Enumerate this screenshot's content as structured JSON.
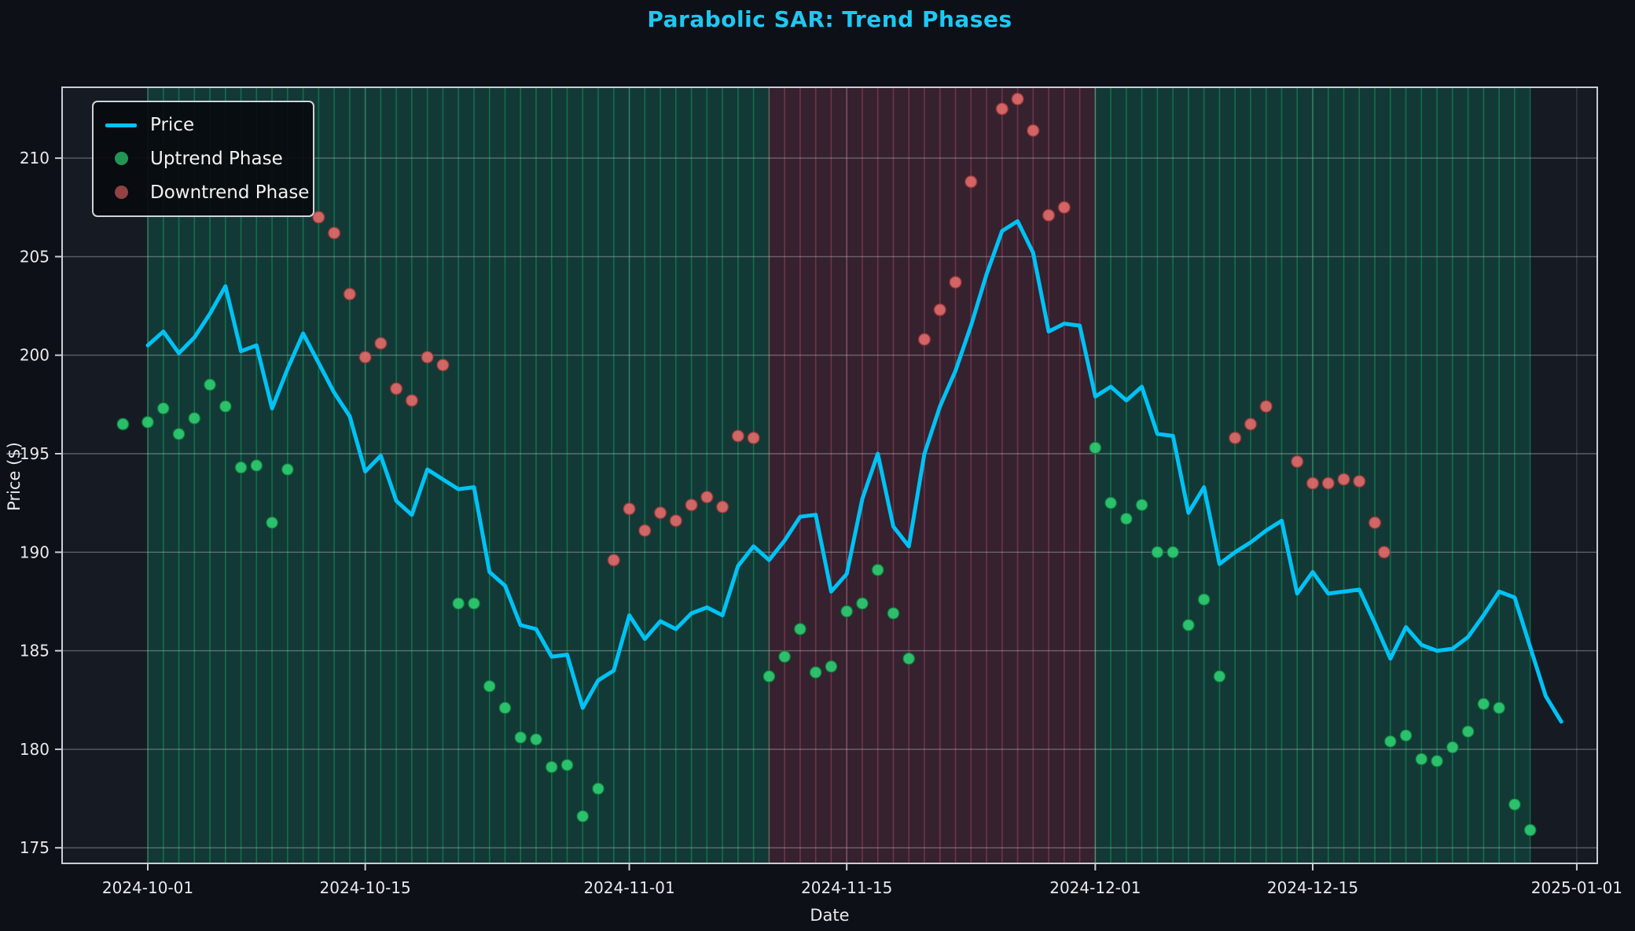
{
  "title": "Parabolic SAR: Trend Phases",
  "legend": {
    "price_label": "Price",
    "uptrend_label": "Uptrend Phase",
    "downtrend_label": "Downtrend Phase"
  },
  "chart_data": {
    "type": "line+scatter",
    "title": "Parabolic SAR: Trend Phases",
    "xlabel": "Date",
    "ylabel": "Price ($)",
    "x_start_date": "2024-10-01",
    "x_end_date": "2024-12-31",
    "n_days": 92,
    "ylim": [
      174.2,
      213.6
    ],
    "yticks": [
      175,
      180,
      185,
      190,
      195,
      200,
      205,
      210
    ],
    "xticks": [
      {
        "d": 0,
        "label": "2024-10-01"
      },
      {
        "d": 14,
        "label": "2024-10-15"
      },
      {
        "d": 31,
        "label": "2024-11-01"
      },
      {
        "d": 45,
        "label": "2024-11-15"
      },
      {
        "d": 61,
        "label": "2024-12-01"
      },
      {
        "d": 75,
        "label": "2024-12-15"
      },
      {
        "d": 92,
        "label": "2025-01-01"
      }
    ],
    "price": [
      200.5,
      201.2,
      200.1,
      200.9,
      202.1,
      203.5,
      200.2,
      200.5,
      197.3,
      199.3,
      201.1,
      199.6,
      198.1,
      196.9,
      194.1,
      194.9,
      192.6,
      191.9,
      194.2,
      193.7,
      193.2,
      193.3,
      189.0,
      188.3,
      186.3,
      186.1,
      184.7,
      184.8,
      182.1,
      183.5,
      184.0,
      186.8,
      185.6,
      186.5,
      186.1,
      186.9,
      187.2,
      186.8,
      189.3,
      190.3,
      189.6,
      190.6,
      191.8,
      191.9,
      188.0,
      188.9,
      192.7,
      195.0,
      191.3,
      190.3,
      195.0,
      197.4,
      199.2,
      201.5,
      204.1,
      206.3,
      206.8,
      205.2,
      201.2,
      201.6,
      201.5,
      197.9,
      198.4,
      197.7,
      198.4,
      196.0,
      195.9,
      192.0,
      193.3,
      189.4,
      190.0,
      190.5,
      191.1,
      191.6,
      187.9,
      189.0,
      187.9,
      188.0,
      188.1,
      186.4,
      184.6,
      186.2,
      185.3,
      185.0,
      185.1,
      185.7,
      186.8,
      188.0,
      187.7,
      185.2,
      182.7,
      181.4
    ],
    "sar_uptrend": [
      [
        -1.6,
        196.5
      ],
      [
        0,
        196.6
      ],
      [
        1,
        197.3
      ],
      [
        2,
        196.0
      ],
      [
        3,
        196.8
      ],
      [
        4,
        198.5
      ],
      [
        5,
        197.4
      ],
      [
        6,
        194.3
      ],
      [
        7,
        194.4
      ],
      [
        8,
        191.5
      ],
      [
        9,
        194.2
      ],
      [
        20,
        187.4
      ],
      [
        21,
        187.4
      ],
      [
        22,
        183.2
      ],
      [
        23,
        182.1
      ],
      [
        24,
        180.6
      ],
      [
        25,
        180.5
      ],
      [
        26,
        179.1
      ],
      [
        27,
        179.2
      ],
      [
        28,
        176.6
      ],
      [
        29,
        178.0
      ],
      [
        40,
        183.7
      ],
      [
        41,
        184.7
      ],
      [
        42,
        186.1
      ],
      [
        43,
        183.9
      ],
      [
        44,
        184.2
      ],
      [
        45,
        187.0
      ],
      [
        46,
        187.4
      ],
      [
        47,
        189.1
      ],
      [
        48,
        186.9
      ],
      [
        49,
        184.6
      ],
      [
        61,
        195.3
      ],
      [
        62,
        192.5
      ],
      [
        63,
        191.7
      ],
      [
        64,
        192.4
      ],
      [
        65,
        190.0
      ],
      [
        66,
        190.0
      ],
      [
        67,
        186.3
      ],
      [
        68,
        187.6
      ],
      [
        69,
        183.7
      ],
      [
        80,
        180.4
      ],
      [
        81,
        180.7
      ],
      [
        82,
        179.5
      ],
      [
        83,
        179.4
      ],
      [
        84,
        180.1
      ],
      [
        85,
        180.9
      ],
      [
        86,
        182.3
      ],
      [
        87,
        182.1
      ],
      [
        88,
        177.2
      ],
      [
        89,
        175.9
      ]
    ],
    "sar_downtrend": [
      [
        11,
        207.0
      ],
      [
        12,
        206.2
      ],
      [
        13,
        203.1
      ],
      [
        14,
        199.9
      ],
      [
        15,
        200.6
      ],
      [
        16,
        198.3
      ],
      [
        17,
        197.7
      ],
      [
        18,
        199.9
      ],
      [
        19,
        199.5
      ],
      [
        30,
        189.6
      ],
      [
        31,
        192.2
      ],
      [
        32,
        191.1
      ],
      [
        33,
        192.0
      ],
      [
        34,
        191.6
      ],
      [
        35,
        192.4
      ],
      [
        36,
        192.8
      ],
      [
        37,
        192.3
      ],
      [
        38,
        195.9
      ],
      [
        39,
        195.8
      ],
      [
        50,
        200.8
      ],
      [
        51,
        202.3
      ],
      [
        52,
        203.7
      ],
      [
        53,
        208.8
      ],
      [
        55,
        212.5
      ],
      [
        56,
        213.0
      ],
      [
        57,
        211.4
      ],
      [
        58,
        207.1
      ],
      [
        59,
        207.5
      ],
      [
        70,
        195.8
      ],
      [
        71,
        196.5
      ],
      [
        72,
        197.4
      ],
      [
        74,
        194.6
      ],
      [
        75,
        193.5
      ],
      [
        76,
        193.5
      ],
      [
        77,
        193.7
      ],
      [
        78,
        193.6
      ],
      [
        79,
        191.5
      ],
      [
        79.6,
        190.0
      ]
    ],
    "phases": [
      {
        "from_day": 0,
        "to_day": 40,
        "trend": "up"
      },
      {
        "from_day": 40,
        "to_day": 61,
        "trend": "down"
      },
      {
        "from_day": 61,
        "to_day": 89,
        "trend": "up"
      }
    ],
    "legend_entries": [
      "Price",
      "Uptrend Phase",
      "Downtrend Phase"
    ],
    "legend_position": "upper left",
    "grid": true,
    "colors": {
      "figure_bg": "#0d1117",
      "axes_bg": "#151a23",
      "title": "#1ec8f2",
      "price_line": "#00c2f5",
      "uptrend_dot": "#2ecc71",
      "downtrend_dot": "#e06a6a",
      "uptrend_span": "rgba(16,185,129,0.20)",
      "uptrend_span_line": "rgba(16,200,115,0.38)",
      "downtrend_span": "rgba(190,65,95,0.20)",
      "downtrend_span_line": "rgba(230,95,120,0.32)",
      "grid_line": "rgba(200,205,215,0.38)",
      "tick_grid_line": "rgba(200,205,215,0.20)",
      "spine": "#c9cdd6",
      "text": "#e8eaed"
    }
  }
}
